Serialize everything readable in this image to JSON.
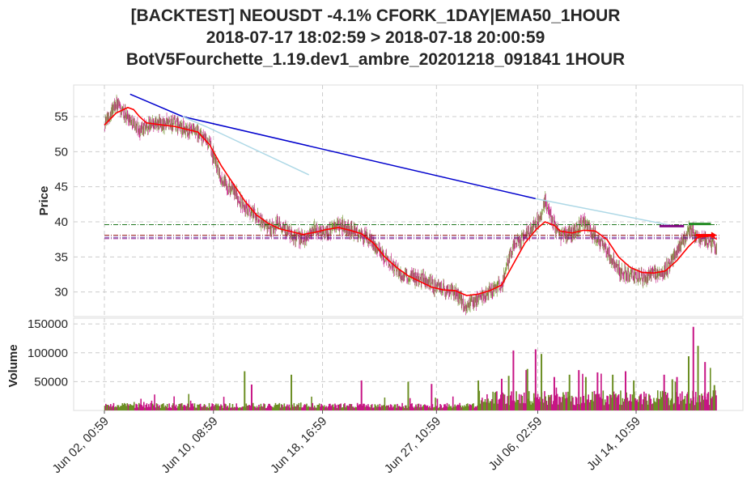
{
  "title": {
    "line1": "[BACKTEST] NEOUSDT -4.1% CFORK_1DAY|EMA50_1HOUR",
    "line2": "2018-07-17 18:02:59 > 2018-07-18 20:00:59",
    "line3": "BotV5Fourchette_1.19.dev1_ambre_20201218_091841 1HOUR"
  },
  "chart_data": [
    {
      "type": "candlestick",
      "panel": "price",
      "ylabel": "Price",
      "ylim": [
        26.5,
        59.5
      ],
      "yticks": [
        30,
        35,
        40,
        45,
        50,
        55
      ],
      "x_range": [
        "2018-06-02 00:59",
        "2018-07-18 20:00"
      ],
      "xticks": [
        "Jun 02, 00:59",
        "Jun 10, 08:59",
        "Jun 18, 16:59",
        "Jun 27, 10:59",
        "Jul 06, 02:59",
        "Jul 14, 10:59"
      ],
      "grid": true,
      "colors": {
        "up": "#6b8e23",
        "down": "#c71585",
        "ema": "#ff0000",
        "trend_main": "#0000cd",
        "trend_light": "#add8e6"
      },
      "close_path_day_price": [
        [
          0,
          54
        ],
        [
          1,
          57
        ],
        [
          1.5,
          55.5
        ],
        [
          2,
          55
        ],
        [
          3,
          53
        ],
        [
          4,
          54
        ],
        [
          5,
          54
        ],
        [
          6,
          54
        ],
        [
          7,
          53
        ],
        [
          8,
          52.5
        ],
        [
          9,
          51
        ],
        [
          10,
          46
        ],
        [
          11,
          44.5
        ],
        [
          12,
          42
        ],
        [
          13,
          41
        ],
        [
          14,
          39
        ],
        [
          15,
          40
        ],
        [
          16,
          38
        ],
        [
          17,
          37.5
        ],
        [
          18,
          39
        ],
        [
          19,
          38.5
        ],
        [
          20,
          39.5
        ],
        [
          21,
          39
        ],
        [
          22,
          38
        ],
        [
          23,
          37
        ],
        [
          24,
          35
        ],
        [
          25,
          33
        ],
        [
          26,
          32
        ],
        [
          27,
          32
        ],
        [
          28,
          31
        ],
        [
          29,
          30.5
        ],
        [
          30,
          30
        ],
        [
          31,
          28
        ],
        [
          32,
          29
        ],
        [
          33,
          30
        ],
        [
          34,
          31
        ],
        [
          35,
          37
        ],
        [
          36,
          38
        ],
        [
          37,
          40
        ],
        [
          37.7,
          43
        ],
        [
          38.5,
          39.5
        ],
        [
          39,
          38
        ],
        [
          40,
          38.5
        ],
        [
          41,
          40
        ],
        [
          41.5,
          39
        ],
        [
          42,
          38
        ],
        [
          43,
          36
        ],
        [
          44,
          33
        ],
        [
          45,
          32.5
        ],
        [
          46,
          32
        ],
        [
          47,
          32.5
        ],
        [
          48,
          33
        ],
        [
          49,
          36
        ],
        [
          50,
          39
        ],
        [
          51,
          37.5
        ],
        [
          52,
          37
        ],
        [
          52.4,
          36
        ]
      ],
      "ema50": [
        [
          0,
          53.8
        ],
        [
          1,
          55.5
        ],
        [
          2,
          56.3
        ],
        [
          2.5,
          56
        ],
        [
          3,
          55
        ],
        [
          3.6,
          54.1
        ],
        [
          5,
          53.8
        ],
        [
          6,
          53.6
        ],
        [
          7,
          53.2
        ],
        [
          8,
          52.8
        ],
        [
          9,
          51
        ],
        [
          10,
          48
        ],
        [
          11,
          45.5
        ],
        [
          12,
          43
        ],
        [
          13,
          41
        ],
        [
          14,
          39.8
        ],
        [
          15,
          39
        ],
        [
          16,
          38.6
        ],
        [
          17,
          38.2
        ],
        [
          18,
          38.5
        ],
        [
          19,
          38.9
        ],
        [
          20,
          39.2
        ],
        [
          21,
          38.8
        ],
        [
          22,
          38.3
        ],
        [
          23,
          37
        ],
        [
          24,
          35
        ],
        [
          25,
          33.5
        ],
        [
          26,
          32.3
        ],
        [
          27,
          31.5
        ],
        [
          28,
          30.7
        ],
        [
          29,
          30.3
        ],
        [
          30,
          30.2
        ],
        [
          31,
          29.5
        ],
        [
          32,
          29.7
        ],
        [
          33,
          30.2
        ],
        [
          34,
          31
        ],
        [
          35,
          34
        ],
        [
          36,
          37
        ],
        [
          37,
          39
        ],
        [
          37.7,
          40
        ],
        [
          38.5,
          39.5
        ],
        [
          39,
          38.7
        ],
        [
          40,
          38.4
        ],
        [
          41,
          38.8
        ],
        [
          42,
          38.7
        ],
        [
          43,
          37.5
        ],
        [
          44,
          35
        ],
        [
          45,
          33.5
        ],
        [
          46,
          32.8
        ],
        [
          47,
          32.7
        ],
        [
          48,
          33
        ],
        [
          49,
          34.5
        ],
        [
          50,
          36.5
        ],
        [
          50.8,
          37.8
        ],
        [
          52,
          38
        ],
        [
          52.4,
          37.5
        ]
      ],
      "trend_lines": [
        {
          "color": "#0000cd",
          "points": [
            [
              2.2,
              58.2
            ],
            [
              6.7,
              55
            ],
            [
              36.9,
              43.3
            ]
          ]
        },
        {
          "color": "#add8e6",
          "points": [
            [
              6.7,
              55
            ],
            [
              8.8,
              53.5
            ],
            [
              17.5,
              46.7
            ]
          ]
        },
        {
          "color": "#add8e6",
          "points": [
            [
              36.9,
              43.3
            ],
            [
              48.5,
              39.5
            ]
          ]
        }
      ],
      "hlines": [
        {
          "y": 39.6,
          "color": "#006400",
          "style": "dashdot",
          "x_from": 0
        },
        {
          "y": 38.1,
          "color": "#8b0000",
          "style": "dashdot",
          "x_from": 0
        },
        {
          "y": 37.8,
          "color": "#4b0082",
          "style": "dashdot",
          "x_from": 0
        },
        {
          "y": 37.6,
          "color": "#800080",
          "style": "dashdot",
          "x_from": 0
        }
      ],
      "markers": [
        {
          "x_from": 47.5,
          "x_to": 49.6,
          "y": 39.4,
          "color": "#800080"
        },
        {
          "x_from": 50.0,
          "x_to": 51.9,
          "y": 39.7,
          "color": "#228b22"
        },
        {
          "x_from": 50.6,
          "x_to": 52.0,
          "y": 38.1,
          "color": "#ff0000"
        }
      ]
    },
    {
      "type": "bar",
      "panel": "volume",
      "ylabel": "Volume",
      "ylim": [
        0,
        160000
      ],
      "yticks": [
        50000,
        100000,
        150000
      ],
      "grid": true,
      "spikes_day_volume": [
        [
          12,
          68000
        ],
        [
          12.6,
          45000
        ],
        [
          16,
          62000
        ],
        [
          22,
          52000
        ],
        [
          26,
          50000
        ],
        [
          28,
          46000
        ],
        [
          32,
          52000
        ],
        [
          34,
          55000
        ],
        [
          34.6,
          60000
        ],
        [
          35,
          104000
        ],
        [
          36.2,
          72000
        ],
        [
          36.9,
          106000
        ],
        [
          37.4,
          98000
        ],
        [
          38.5,
          58000
        ],
        [
          39.8,
          62000
        ],
        [
          40.6,
          70000
        ],
        [
          41.2,
          58000
        ],
        [
          42.2,
          66000
        ],
        [
          43.5,
          62000
        ],
        [
          44.6,
          68000
        ],
        [
          45.3,
          52000
        ],
        [
          47.9,
          62000
        ],
        [
          48.6,
          54000
        ],
        [
          49,
          58000
        ],
        [
          50,
          94000
        ],
        [
          50.4,
          145000
        ],
        [
          50.8,
          112000
        ],
        [
          51.4,
          84000
        ],
        [
          52.2,
          44000
        ]
      ]
    }
  ]
}
